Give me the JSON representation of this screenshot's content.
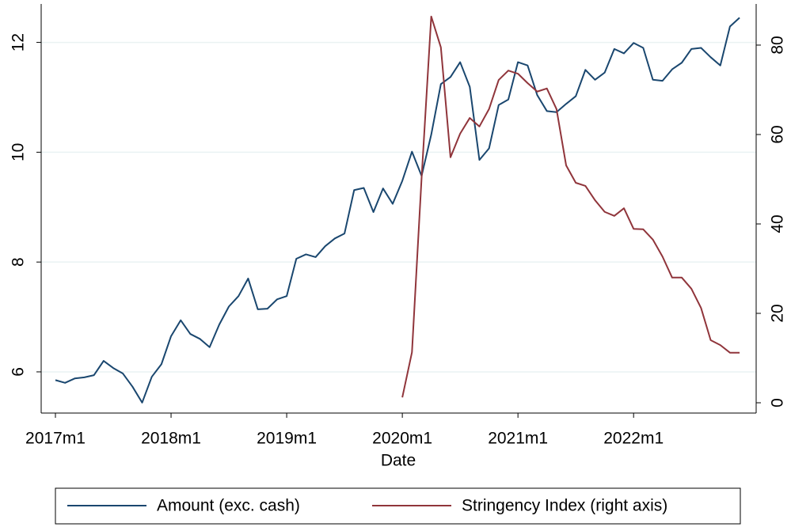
{
  "chart_data": {
    "type": "line",
    "x_label": "Date",
    "x": [
      "2017m1",
      "2017m2",
      "2017m3",
      "2017m4",
      "2017m5",
      "2017m6",
      "2017m7",
      "2017m8",
      "2017m9",
      "2017m10",
      "2017m11",
      "2017m12",
      "2018m1",
      "2018m2",
      "2018m3",
      "2018m4",
      "2018m5",
      "2018m6",
      "2018m7",
      "2018m8",
      "2018m9",
      "2018m10",
      "2018m11",
      "2018m12",
      "2019m1",
      "2019m2",
      "2019m3",
      "2019m4",
      "2019m5",
      "2019m6",
      "2019m7",
      "2019m8",
      "2019m9",
      "2019m10",
      "2019m11",
      "2019m12",
      "2020m1",
      "2020m2",
      "2020m3",
      "2020m4",
      "2020m5",
      "2020m6",
      "2020m7",
      "2020m8",
      "2020m9",
      "2020m10",
      "2020m11",
      "2020m12",
      "2021m1",
      "2021m2",
      "2021m3",
      "2021m4",
      "2021m5",
      "2021m6",
      "2021m7",
      "2021m8",
      "2021m9",
      "2021m10",
      "2021m11",
      "2021m12",
      "2022m1",
      "2022m2",
      "2022m3",
      "2022m4",
      "2022m5",
      "2022m6",
      "2022m7",
      "2022m8",
      "2022m9",
      "2022m10",
      "2022m11",
      "2022m12"
    ],
    "xticks": [
      "2017m1",
      "2018m1",
      "2019m1",
      "2020m1",
      "2021m1",
      "2022m1"
    ],
    "series": [
      {
        "name": "Amount (exc. cash)",
        "color": "#1a476f",
        "axis": "y",
        "values": [
          5.85,
          5.8,
          5.88,
          5.9,
          5.94,
          6.2,
          6.07,
          5.97,
          5.73,
          5.44,
          5.91,
          6.14,
          6.65,
          6.94,
          6.69,
          6.6,
          6.45,
          6.86,
          7.19,
          7.38,
          7.7,
          7.14,
          7.15,
          7.32,
          7.38,
          8.06,
          8.14,
          8.09,
          8.29,
          8.43,
          8.52,
          9.31,
          9.35,
          8.91,
          9.34,
          9.06,
          9.48,
          10.01,
          9.57,
          10.32,
          11.24,
          11.37,
          11.64,
          11.19,
          9.86,
          10.07,
          10.86,
          10.96,
          11.64,
          11.58,
          11.04,
          10.75,
          10.73,
          10.88,
          11.02,
          11.5,
          11.32,
          11.45,
          11.88,
          11.8,
          11.99,
          11.9,
          11.32,
          11.3,
          11.51,
          11.63,
          11.88,
          11.9,
          11.73,
          11.58,
          12.29,
          12.45
        ]
      },
      {
        "name": "Stringency Index (right axis)",
        "color": "#90353b",
        "axis": "y2",
        "values": [
          null,
          null,
          null,
          null,
          null,
          null,
          null,
          null,
          null,
          null,
          null,
          null,
          null,
          null,
          null,
          null,
          null,
          null,
          null,
          null,
          null,
          null,
          null,
          null,
          null,
          null,
          null,
          null,
          null,
          null,
          null,
          null,
          null,
          null,
          null,
          null,
          1.2,
          11.3,
          50.3,
          86.4,
          79.5,
          54.9,
          60.2,
          63.7,
          61.8,
          65.7,
          72.2,
          74.3,
          73.6,
          71.5,
          69.6,
          70.3,
          65.7,
          53.1,
          49.2,
          48.5,
          45.3,
          42.7,
          41.8,
          43.5,
          38.9,
          38.8,
          36.5,
          32.7,
          28,
          28,
          25.5,
          21.2,
          14,
          12.9,
          11.2,
          11.2
        ]
      }
    ],
    "ylim": [
      5.25,
      12.7
    ],
    "yticks": [
      6,
      8,
      10,
      12
    ],
    "y2lim": [
      -2.3,
      89.2
    ],
    "y2ticks": [
      0,
      20,
      40,
      60,
      80
    ],
    "grid": true,
    "legend": "bottom"
  }
}
